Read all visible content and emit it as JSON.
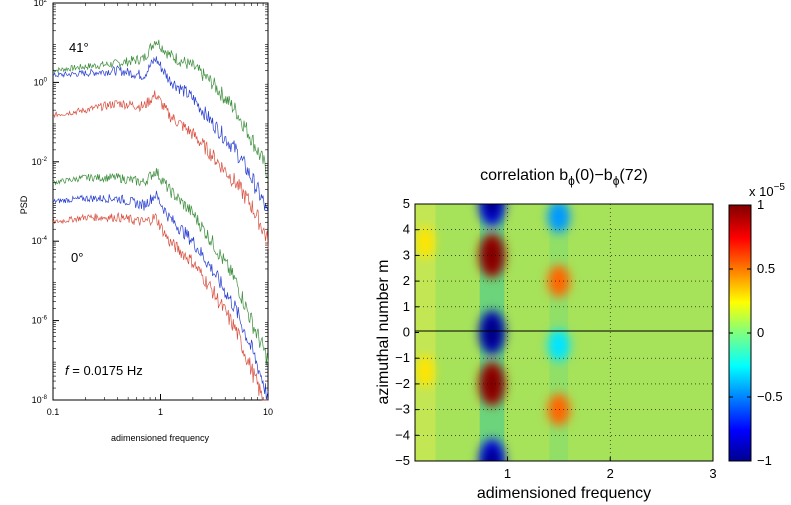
{
  "chart_data": [
    {
      "type": "line",
      "scale": "log-log",
      "xlabel": "adimensioned frequency",
      "ylabel": "PSD",
      "xlim": [
        0.1,
        10
      ],
      "ylim": [
        1e-08,
        100
      ],
      "x_ticks": [
        {
          "value": 0.1,
          "label": "0.1"
        },
        {
          "value": 1,
          "label": "1"
        },
        {
          "value": 10,
          "label": "10"
        }
      ],
      "y_ticks": [
        {
          "value": 1e-08,
          "base": "10",
          "exp": "-8"
        },
        {
          "value": 1e-06,
          "base": "10",
          "exp": "-6"
        },
        {
          "value": 0.0001,
          "base": "10",
          "exp": "-4"
        },
        {
          "value": 0.01,
          "base": "10",
          "exp": "-2"
        },
        {
          "value": 1,
          "base": "10",
          "exp": "0"
        },
        {
          "value": 100,
          "base": "10",
          "exp": "2"
        }
      ],
      "annotations": {
        "upper_angle": "41°",
        "lower_angle": "0°",
        "freq_symbol": "f",
        "freq_value": " = 0.0175 Hz"
      },
      "series": [
        {
          "group": "41°",
          "color": "#3f8f3f",
          "x": [
            0.1,
            0.2,
            0.4,
            0.7,
            0.9,
            1.2,
            2,
            3,
            5,
            7,
            9,
            10
          ],
          "y": [
            2,
            2.5,
            3,
            4,
            12,
            5,
            2.5,
            1,
            0.2,
            0.04,
            0.01,
            0.005
          ]
        },
        {
          "group": "41°",
          "color": "#2a3fd0",
          "x": [
            0.1,
            0.2,
            0.4,
            0.7,
            0.9,
            1.2,
            2,
            3,
            5,
            7,
            9,
            10
          ],
          "y": [
            1.5,
            1.7,
            2,
            1.5,
            4,
            1.2,
            0.4,
            0.1,
            0.02,
            0.004,
            0.001,
            0.0004
          ]
        },
        {
          "group": "41°",
          "color": "#d85040",
          "x": [
            0.1,
            0.2,
            0.4,
            0.7,
            0.9,
            1.2,
            2,
            3,
            5,
            7,
            9,
            10
          ],
          "y": [
            0.15,
            0.2,
            0.3,
            0.25,
            0.5,
            0.15,
            0.05,
            0.015,
            0.003,
            0.0008,
            0.0002,
            0.0001
          ]
        },
        {
          "group": "0°",
          "color": "#3f8f3f",
          "x": [
            0.1,
            0.2,
            0.4,
            0.7,
            0.9,
            1.2,
            2,
            3,
            5,
            7,
            9,
            10
          ],
          "y": [
            0.003,
            0.004,
            0.004,
            0.003,
            0.006,
            0.002,
            0.0005,
            0.0001,
            1e-05,
            1e-06,
            2e-07,
            1e-07
          ]
        },
        {
          "group": "0°",
          "color": "#2a3fd0",
          "x": [
            0.1,
            0.2,
            0.4,
            0.7,
            0.9,
            1.2,
            2,
            3,
            5,
            7,
            9,
            10
          ],
          "y": [
            0.001,
            0.0012,
            0.0012,
            0.0008,
            0.0015,
            0.0004,
            0.0001,
            2e-05,
            2e-06,
            2e-07,
            3e-08,
            1e-08
          ]
        },
        {
          "group": "0°",
          "color": "#d85040",
          "x": [
            0.1,
            0.2,
            0.4,
            0.7,
            0.9,
            1.2,
            2,
            3,
            5,
            7,
            9,
            10
          ],
          "y": [
            0.0003,
            0.0004,
            0.0004,
            0.0003,
            0.0004,
            0.0001,
            3e-05,
            6e-06,
            6e-07,
            6e-08,
            1e-08,
            5e-09
          ]
        }
      ]
    },
    {
      "type": "heatmap",
      "title_main": "correlation b",
      "title_sub": "ϕ",
      "title_arg_0": "(0)−b",
      "title_arg_1": "(72)",
      "xlabel": "adimensioned frequency",
      "ylabel": "azimuthal number m",
      "xlim": [
        0.1,
        3
      ],
      "ylim": [
        -5,
        5
      ],
      "x_ticks": [
        "1",
        "2",
        "3"
      ],
      "y_ticks": [
        "5",
        "4",
        "3",
        "2",
        "1",
        "0",
        "−1",
        "−2",
        "−3",
        "−4",
        "−5"
      ],
      "grid": true,
      "colorbar": {
        "range": [
          -1,
          1
        ],
        "multiplier_base": "x 10",
        "multiplier_exp": "−5",
        "ticks": [
          "1",
          "0.5",
          "0",
          "−0.5",
          "−1"
        ],
        "colormap": "jet"
      },
      "features": [
        {
          "x": 0.85,
          "m": 3,
          "value": 0.95
        },
        {
          "x": 0.85,
          "m": -2,
          "value": 0.95
        },
        {
          "x": 0.85,
          "m": 0,
          "value": -0.9
        },
        {
          "x": 0.85,
          "m": 5,
          "value": -0.8
        },
        {
          "x": 0.85,
          "m": -5,
          "value": -0.8
        },
        {
          "x": 1.5,
          "m": 2,
          "value": 0.55
        },
        {
          "x": 1.5,
          "m": -3,
          "value": 0.55
        },
        {
          "x": 1.5,
          "m": 4.5,
          "value": -0.45
        },
        {
          "x": 1.5,
          "m": -0.5,
          "value": -0.3
        },
        {
          "x": 0.2,
          "m": 3.5,
          "value": 0.3
        },
        {
          "x": 0.2,
          "m": -1.5,
          "value": 0.3
        }
      ]
    }
  ]
}
